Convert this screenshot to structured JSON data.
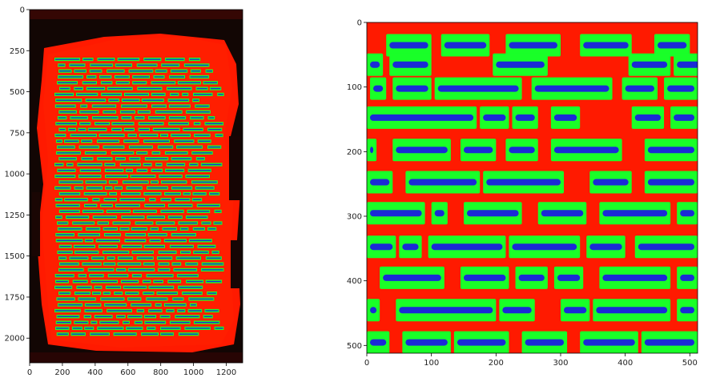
{
  "left_plot": {
    "y_ticks": [
      "0",
      "250",
      "500",
      "750",
      "1000",
      "1250",
      "1500",
      "1750",
      "2000"
    ],
    "x_ticks": [
      "0",
      "200",
      "400",
      "600",
      "800",
      "1000",
      "1200"
    ]
  },
  "right_plot": {
    "y_ticks": [
      "0",
      "100",
      "200",
      "300",
      "400",
      "500"
    ],
    "x_ticks": [
      "0",
      "100",
      "200",
      "300",
      "400",
      "500"
    ]
  },
  "colors": {
    "background_dark": "#120604",
    "mask_red": "#ff1a00",
    "text_green": "#19ff28",
    "text_blue": "#1a2bd6"
  }
}
